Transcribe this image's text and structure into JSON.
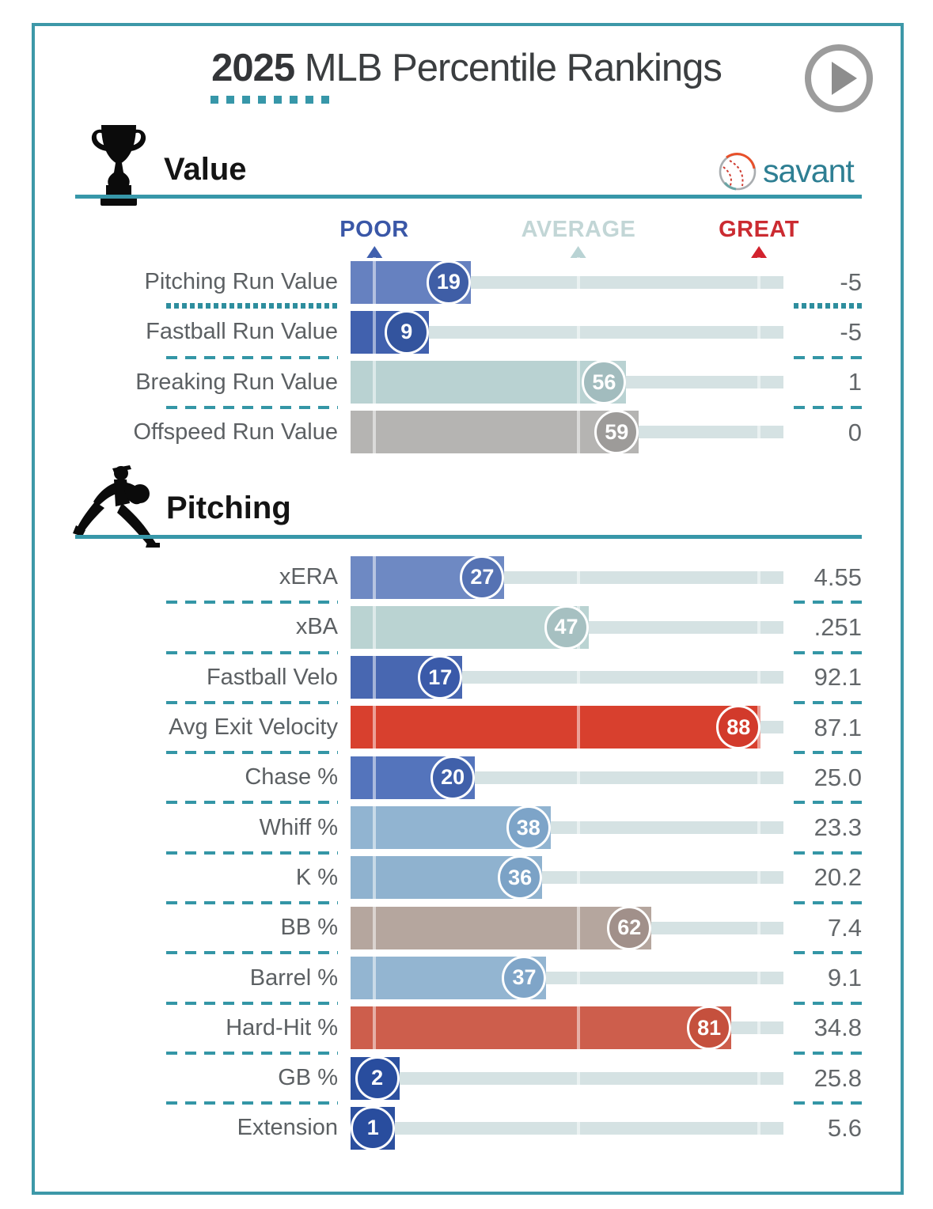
{
  "title": {
    "year": "2025",
    "rest": " MLB Percentile Rankings"
  },
  "brand": {
    "name": "savant"
  },
  "scale": {
    "poor": "POOR",
    "average": "AVERAGE",
    "great": "GREAT"
  },
  "colors": {
    "teal_accent": "#3d98a8",
    "track": "#d5e2e3",
    "poor_label": "#3a57a7",
    "average_label": "#c2d6d6",
    "great_label": "#cb2b31",
    "text_gray": "#5c6063"
  },
  "sections": [
    {
      "title": "Value",
      "icon": "trophy-icon",
      "rows": [
        {
          "label": "Pitching Run Value",
          "pct": 19,
          "value": "-5",
          "bar_color": "#6681c0",
          "badge_color": "#3f5ea6",
          "divider": "dotted"
        },
        {
          "label": "Fastball Run Value",
          "pct": 9,
          "value": "-5",
          "bar_color": "#4161ae",
          "badge_color": "#33549e",
          "divider": "dashed"
        },
        {
          "label": "Breaking Run Value",
          "pct": 56,
          "value": "1",
          "bar_color": "#b9d2d2",
          "badge_color": "#a2bcbe",
          "divider": "dashed"
        },
        {
          "label": "Offspeed Run Value",
          "pct": 59,
          "value": "0",
          "bar_color": "#b5b4b2",
          "badge_color": "#9d9b99",
          "divider": "none"
        }
      ]
    },
    {
      "title": "Pitching",
      "icon": "pitcher-icon",
      "rows": [
        {
          "label": "xERA",
          "pct": 27,
          "value": "4.55",
          "bar_color": "#6e89c3",
          "badge_color": "#5572b3",
          "divider": "dashed"
        },
        {
          "label": "xBA",
          "pct": 47,
          "value": ".251",
          "bar_color": "#bad3d2",
          "badge_color": "#a6c0c1",
          "divider": "dashed"
        },
        {
          "label": "Fastball Velo",
          "pct": 17,
          "value": "92.1",
          "bar_color": "#4867b1",
          "badge_color": "#3a5aa9",
          "divider": "dashed"
        },
        {
          "label": "Avg Exit Velocity",
          "pct": 88,
          "value": "87.1",
          "bar_color": "#d8402e",
          "badge_color": "#d23a2b",
          "divider": "dashed"
        },
        {
          "label": "Chase %",
          "pct": 20,
          "value": "25.0",
          "bar_color": "#5474bc",
          "badge_color": "#4060aa",
          "divider": "dashed"
        },
        {
          "label": "Whiff %",
          "pct": 38,
          "value": "23.3",
          "bar_color": "#91b4d1",
          "badge_color": "#7da4c8",
          "divider": "dashed"
        },
        {
          "label": "K %",
          "pct": 36,
          "value": "20.2",
          "bar_color": "#8fb2cf",
          "badge_color": "#7ba2c6",
          "divider": "dashed"
        },
        {
          "label": "BB %",
          "pct": 62,
          "value": "7.4",
          "bar_color": "#b5a69e",
          "badge_color": "#a1908a",
          "divider": "dashed"
        },
        {
          "label": "Barrel %",
          "pct": 37,
          "value": "9.1",
          "bar_color": "#93b5d1",
          "badge_color": "#7fa5c8",
          "divider": "dashed"
        },
        {
          "label": "Hard-Hit %",
          "pct": 81,
          "value": "34.8",
          "bar_color": "#cd5e4c",
          "badge_color": "#c5503d",
          "divider": "dashed"
        },
        {
          "label": "GB %",
          "pct": 2,
          "value": "25.8",
          "bar_color": "#2c509f",
          "badge_color": "#294d9e",
          "divider": "dashed"
        },
        {
          "label": "Extension",
          "pct": 1,
          "value": "5.6",
          "bar_color": "#2c509f",
          "badge_color": "#294d9e",
          "divider": "none"
        }
      ]
    }
  ],
  "chart_data": [
    {
      "type": "bar",
      "title": "Value",
      "orientation": "horizontal",
      "categories": [
        "Pitching Run Value",
        "Fastball Run Value",
        "Breaking Run Value",
        "Offspeed Run Value"
      ],
      "series": [
        {
          "name": "percentile",
          "values": [
            19,
            9,
            56,
            59
          ]
        },
        {
          "name": "stat_value",
          "values": [
            "-5",
            "-5",
            "1",
            "0"
          ]
        }
      ],
      "xlabel": "percentile",
      "ylabel": "",
      "xlim": [
        0,
        100
      ],
      "legend": [
        "POOR",
        "AVERAGE",
        "GREAT"
      ],
      "legend_position": "top",
      "grid": false
    },
    {
      "type": "bar",
      "title": "Pitching",
      "orientation": "horizontal",
      "categories": [
        "xERA",
        "xBA",
        "Fastball Velo",
        "Avg Exit Velocity",
        "Chase %",
        "Whiff %",
        "K %",
        "BB %",
        "Barrel %",
        "Hard-Hit %",
        "GB %",
        "Extension"
      ],
      "series": [
        {
          "name": "percentile",
          "values": [
            27,
            47,
            17,
            88,
            20,
            38,
            36,
            62,
            37,
            81,
            2,
            1
          ]
        },
        {
          "name": "stat_value",
          "values": [
            "4.55",
            ".251",
            "92.1",
            "87.1",
            "25.0",
            "23.3",
            "20.2",
            "7.4",
            "9.1",
            "34.8",
            "25.8",
            "5.6"
          ]
        }
      ],
      "xlabel": "percentile",
      "ylabel": "",
      "xlim": [
        0,
        100
      ],
      "grid": false
    }
  ]
}
